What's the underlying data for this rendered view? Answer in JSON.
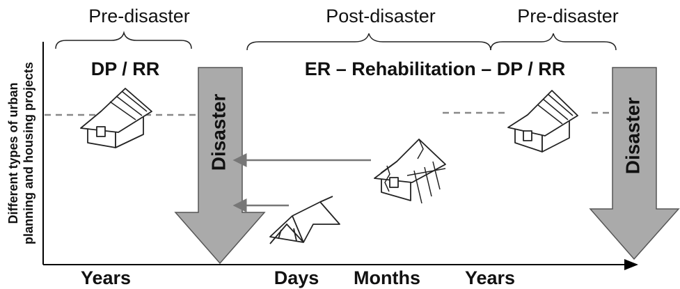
{
  "phases": [
    "Pre-disaster",
    "Post-disaster",
    "Pre-disaster"
  ],
  "headings": [
    "DP / RR",
    "ER  – Rehabilitation –  DP / RR"
  ],
  "events": [
    "Disaster",
    "Disaster"
  ],
  "y_axis_label": [
    "Different types of urban",
    "planning and housing projects"
  ],
  "x_axis_labels": [
    "Years",
    "Days",
    "Months",
    "Years"
  ]
}
